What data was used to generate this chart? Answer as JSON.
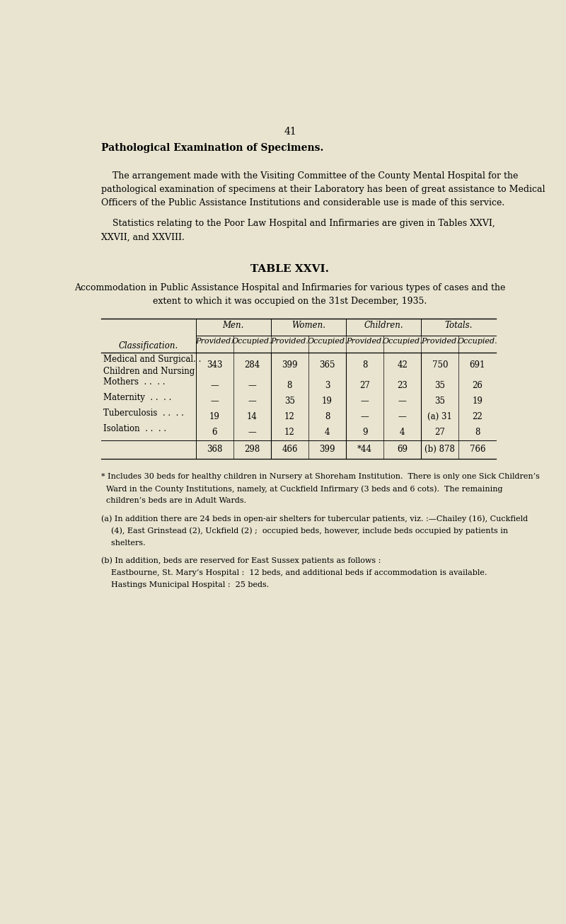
{
  "bg_color": "#e8e4d0",
  "page_number": "41",
  "title_bold": "Pathological Examination of Specimens.",
  "para1_lines": [
    "    The arrangement made with the Visiting Committee of the County Mental Hospital for the",
    "pathological examination of specimens at their Laboratory has been of great assistance to Medical",
    "Officers of the Public Assistance Institutions and considerable use is made of this service."
  ],
  "para2_lines": [
    "    Statistics relating to the Poor Law Hospital and Infirmaries are given in Tables XXVI,",
    "XXVII, and XXVIII."
  ],
  "table_title": "TABLE XXVI.",
  "subtitle_lines": [
    "Accommodation in Public Assistance Hospital and Infirmaries for various types of cases and the",
    "extent to which it was occupied on the 31st December, 1935."
  ],
  "col_groups": [
    "Men.",
    "Women.",
    "Children.",
    "Totals."
  ],
  "col_subheaders": [
    "Provided.",
    "Occupied.",
    "Provided.",
    "Occupied.",
    "Provided.",
    "Occupied.",
    "Provided.",
    "Occupied."
  ],
  "row_header": "Classification.",
  "rows": [
    {
      "label": [
        "Medical and Surgical. .",
        "Children and Nursing"
      ],
      "values": [
        "343",
        "284",
        "399",
        "365",
        "8",
        "42",
        "750",
        "691"
      ]
    },
    {
      "label": [
        "Mothers  . .  . ."
      ],
      "values": [
        "—",
        "—",
        "8",
        "3",
        "27",
        "23",
        "35",
        "26"
      ]
    },
    {
      "label": [
        "Maternity  . .  . ."
      ],
      "values": [
        "—",
        "—",
        "35",
        "19",
        "—",
        "—",
        "35",
        "19"
      ]
    },
    {
      "label": [
        "Tuberculosis  . .  . ."
      ],
      "values": [
        "19",
        "14",
        "12",
        "8",
        "—",
        "—",
        "(a) 31",
        "22"
      ]
    },
    {
      "label": [
        "Isolation  . .  . ."
      ],
      "values": [
        "6",
        "—",
        "12",
        "4",
        "9",
        "4",
        "27",
        "8"
      ]
    }
  ],
  "totals_row": [
    "368",
    "298",
    "466",
    "399",
    "*44",
    "69",
    "(b) 878",
    "766"
  ],
  "fn_star_lines": [
    "* Includes 30 beds for healthy children in Nursery at Shoreham Institution.  There is only one Sick Children’s",
    "  Ward in the County Institutions, namely, at Cuckfield Infirmary (3 beds and 6 cots).  The remaining",
    "  children’s beds are in Adult Wards."
  ],
  "fn_a_lines": [
    "(a) In addition there are 24 beds in open-air shelters for tubercular patients, viz. :—Chailey (16), Cuckfield",
    "    (4), East Grinstead (2), Uckfield (2) ;  occupied beds, however, include beds occupied by patients in",
    "    shelters."
  ],
  "fn_b_lines": [
    "(b) In addition, beds are reserved for East Sussex patients as follows :",
    "    Eastbourne, St. Mary’s Hospital :  12 beds, and additional beds if accommodation is available.",
    "    Hastings Municipal Hospital :  25 beds."
  ]
}
